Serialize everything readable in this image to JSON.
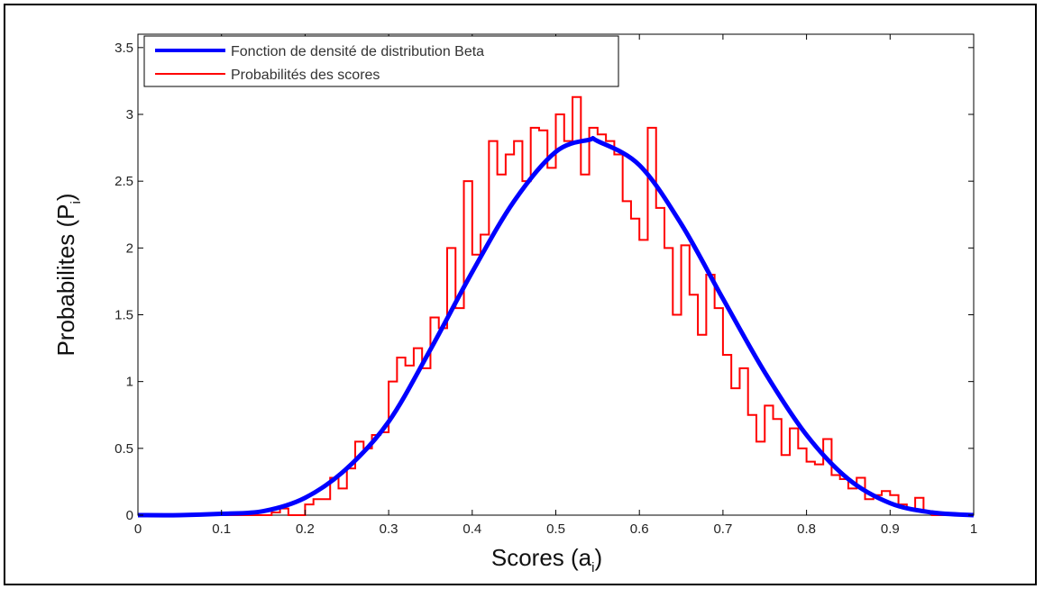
{
  "chart_data": {
    "type": "line",
    "title": "",
    "xlabel": {
      "main": "Scores (a",
      "sub": "i",
      "close": ")"
    },
    "ylabel": {
      "main": "Probabilites (P",
      "sub": "i",
      "close": ")"
    },
    "xlim": [
      0,
      1
    ],
    "ylim": [
      0,
      3.6
    ],
    "xticks": [
      "0",
      "0.1",
      "0.2",
      "0.3",
      "0.4",
      "0.5",
      "0.6",
      "0.7",
      "0.8",
      "0.9",
      "1"
    ],
    "yticks": [
      "0",
      "0.5",
      "1",
      "1.5",
      "2",
      "2.5",
      "3",
      "3.5"
    ],
    "grid": false,
    "legend_position": "top-left",
    "series": [
      {
        "name": "Fonction de densité de distribution Beta",
        "kind": "curve",
        "color": "#0000ff",
        "x": [
          0,
          0.05,
          0.1,
          0.15,
          0.2,
          0.25,
          0.3,
          0.35,
          0.4,
          0.45,
          0.5,
          0.54,
          0.55,
          0.6,
          0.65,
          0.7,
          0.75,
          0.8,
          0.85,
          0.9,
          0.95,
          1.0
        ],
        "y": [
          0,
          0,
          0.01,
          0.03,
          0.13,
          0.35,
          0.7,
          1.24,
          1.82,
          2.35,
          2.72,
          2.81,
          2.8,
          2.62,
          2.18,
          1.62,
          1.07,
          0.6,
          0.27,
          0.09,
          0.02,
          0
        ]
      },
      {
        "name": "Probabilités des scores",
        "kind": "stairs",
        "color": "#ff0000",
        "x": [
          0,
          0.16,
          0.17,
          0.18,
          0.19,
          0.2,
          0.21,
          0.22,
          0.23,
          0.24,
          0.25,
          0.26,
          0.27,
          0.28,
          0.29,
          0.3,
          0.31,
          0.32,
          0.33,
          0.34,
          0.35,
          0.36,
          0.37,
          0.38,
          0.39,
          0.4,
          0.41,
          0.42,
          0.43,
          0.44,
          0.45,
          0.46,
          0.47,
          0.48,
          0.49,
          0.5,
          0.51,
          0.52,
          0.53,
          0.54,
          0.55,
          0.56,
          0.57,
          0.58,
          0.59,
          0.6,
          0.61,
          0.62,
          0.63,
          0.64,
          0.65,
          0.66,
          0.67,
          0.68,
          0.69,
          0.7,
          0.71,
          0.72,
          0.73,
          0.74,
          0.75,
          0.76,
          0.77,
          0.78,
          0.79,
          0.8,
          0.81,
          0.82,
          0.83,
          0.84,
          0.85,
          0.86,
          0.87,
          0.88,
          0.89,
          0.9,
          0.91,
          0.92,
          0.93,
          0.94,
          0.95,
          0.96,
          1.0
        ],
        "y": [
          0,
          0.02,
          0.05,
          0.0,
          0.0,
          0.08,
          0.12,
          0.12,
          0.28,
          0.2,
          0.35,
          0.55,
          0.5,
          0.6,
          0.62,
          1.0,
          1.18,
          1.12,
          1.25,
          1.1,
          1.48,
          1.4,
          2.0,
          1.55,
          2.5,
          1.95,
          2.1,
          2.8,
          2.55,
          2.7,
          2.8,
          2.5,
          2.9,
          2.88,
          2.6,
          3.0,
          2.8,
          3.13,
          2.55,
          2.9,
          2.85,
          2.8,
          2.7,
          2.35,
          2.22,
          2.06,
          2.9,
          2.3,
          2.0,
          1.5,
          2.02,
          1.65,
          1.35,
          1.8,
          1.55,
          1.2,
          0.95,
          1.1,
          0.75,
          0.55,
          0.82,
          0.72,
          0.45,
          0.65,
          0.5,
          0.4,
          0.38,
          0.57,
          0.3,
          0.27,
          0.2,
          0.28,
          0.12,
          0.15,
          0.18,
          0.15,
          0.08,
          0.05,
          0.13,
          0.03,
          0.0,
          0.0,
          0.0
        ]
      }
    ]
  }
}
